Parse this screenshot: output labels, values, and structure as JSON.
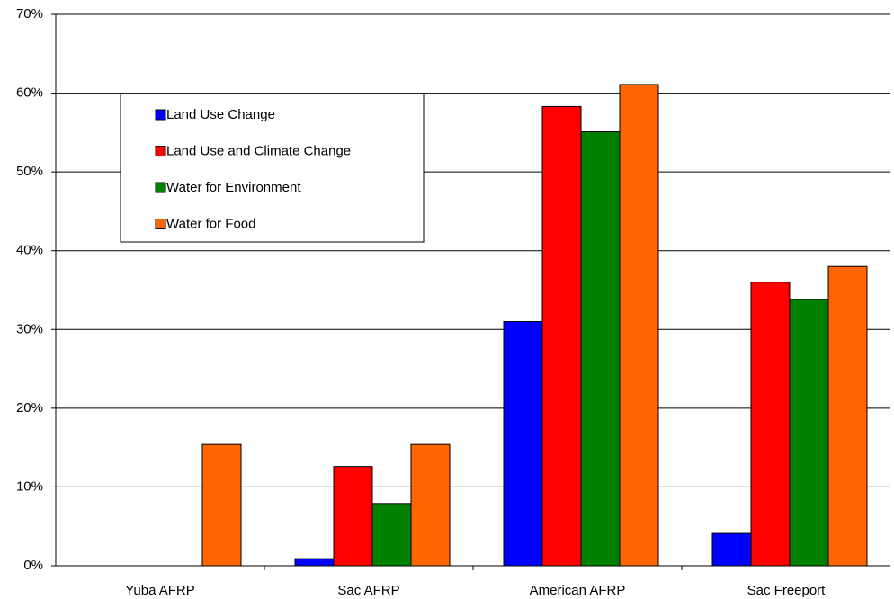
{
  "chart_data": {
    "type": "bar",
    "categories": [
      "Yuba AFRP",
      "Sac AFRP",
      "American AFRP",
      "Sac Freeport"
    ],
    "series": [
      {
        "name": "Land Use Change",
        "color": "#0000ff",
        "values": [
          0,
          0.9,
          31.0,
          4.1
        ]
      },
      {
        "name": "Land Use and Climate Change",
        "color": "#ff0000",
        "values": [
          0,
          12.6,
          58.3,
          36.0
        ]
      },
      {
        "name": "Water for Environment",
        "color": "#008000",
        "values": [
          0,
          7.9,
          55.1,
          33.8
        ]
      },
      {
        "name": "Water for Food",
        "color": "#ff6600",
        "values": [
          15.4,
          15.4,
          61.1,
          38.0
        ]
      }
    ],
    "ylim": [
      0,
      70
    ],
    "yticks": [
      {
        "value": 0,
        "label": "0%"
      },
      {
        "value": 10,
        "label": "10%"
      },
      {
        "value": 20,
        "label": "20%"
      },
      {
        "value": 30,
        "label": "30%"
      },
      {
        "value": 40,
        "label": "40%"
      },
      {
        "value": 50,
        "label": "50%"
      },
      {
        "value": 60,
        "label": "60%"
      },
      {
        "value": 70,
        "label": "70%"
      }
    ],
    "grid": true,
    "legend": "upper-left"
  }
}
